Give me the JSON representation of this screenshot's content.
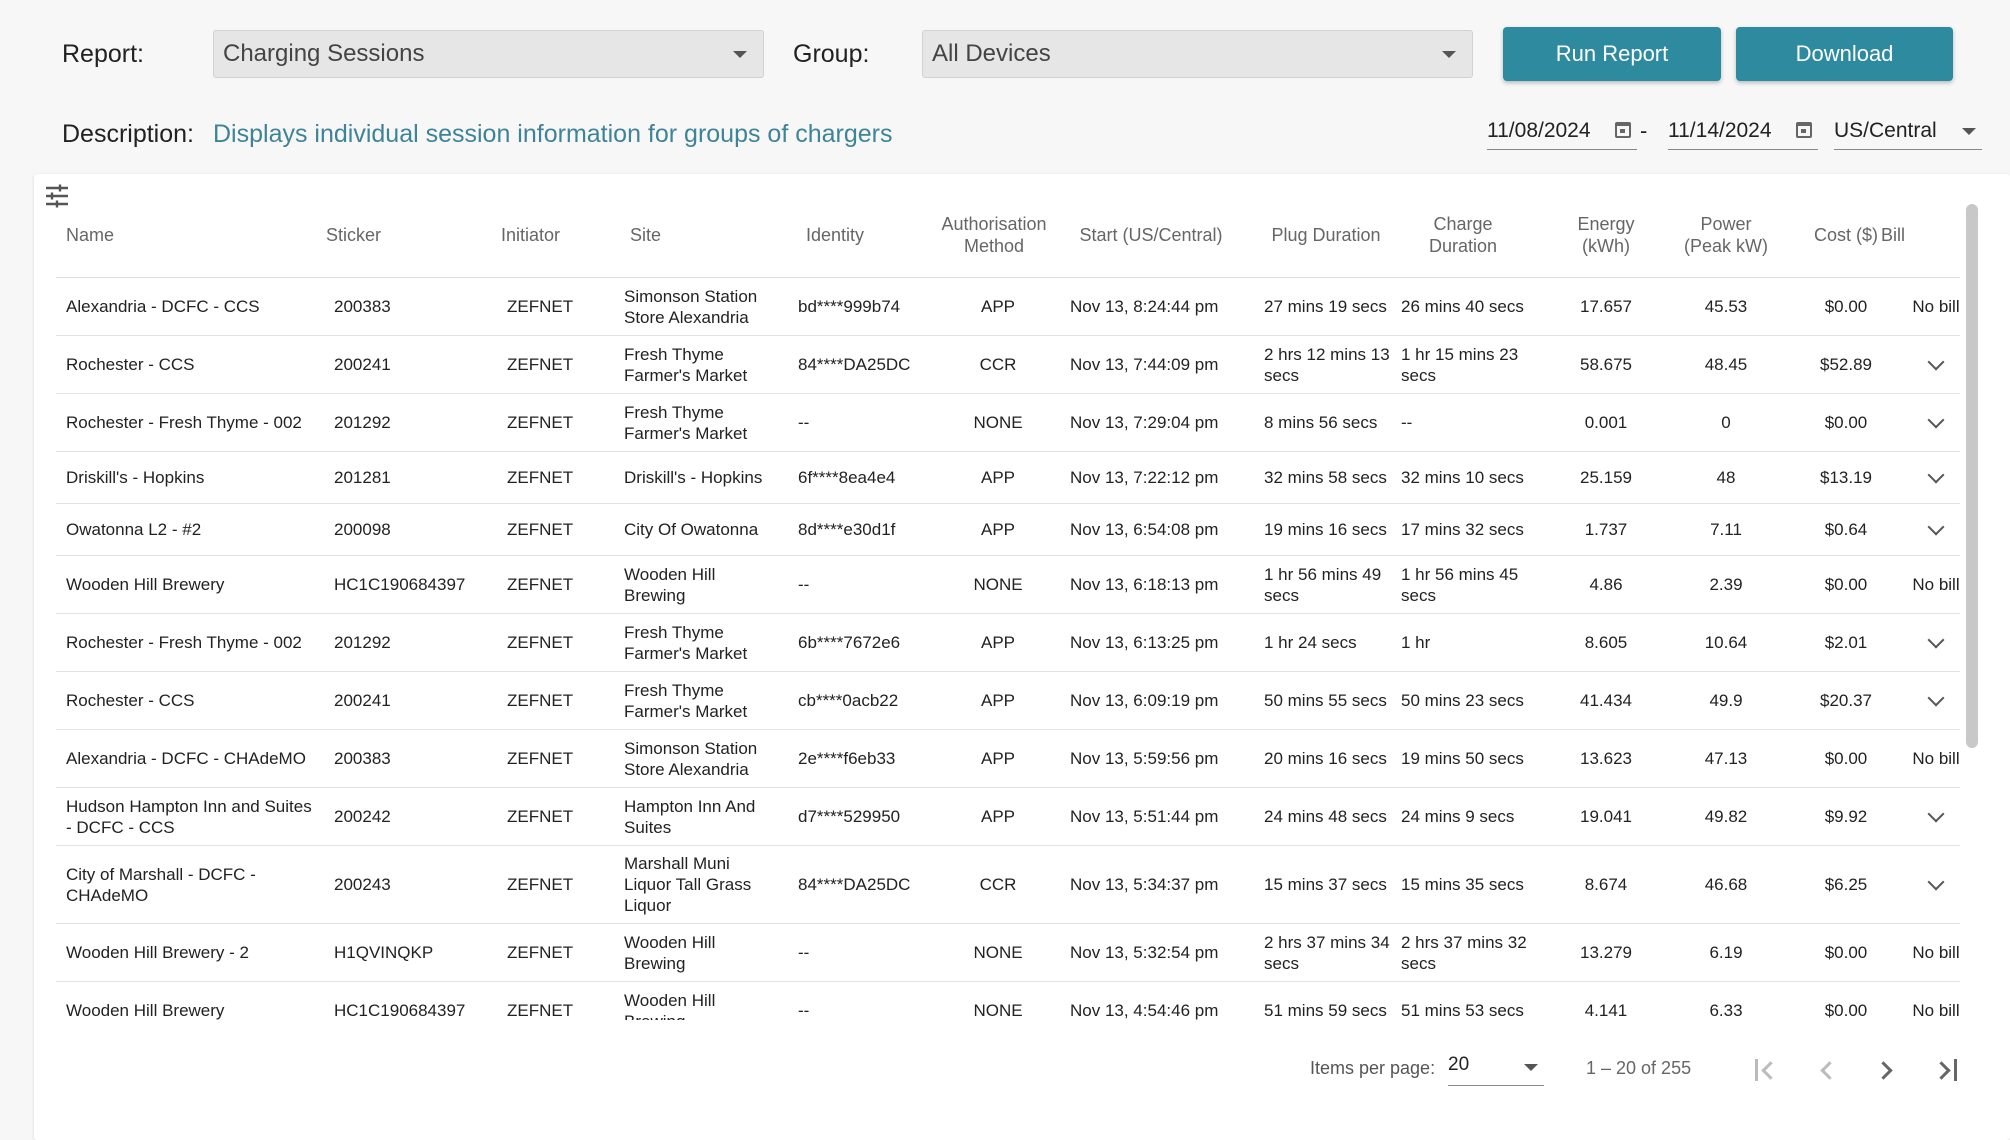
{
  "toolbar": {
    "report_label": "Report:",
    "report_value": "Charging Sessions",
    "group_label": "Group:",
    "group_value": "All Devices",
    "run_label": "Run Report",
    "download_label": "Download",
    "description_label": "Description:",
    "description_text": "Displays individual session information for groups of chargers",
    "date_from": "11/08/2024",
    "date_separator": "-",
    "date_to": "11/14/2024",
    "timezone": "US/Central"
  },
  "table": {
    "columns": [
      {
        "label": "Name"
      },
      {
        "label": "Sticker"
      },
      {
        "label": "Initiator"
      },
      {
        "label": "Site"
      },
      {
        "label": "Identity"
      },
      {
        "label": "Authorisation Method"
      },
      {
        "label": "Start (US/Central)"
      },
      {
        "label": "Plug Duration"
      },
      {
        "label": "Charge Duration"
      },
      {
        "label": "Energy (kWh)"
      },
      {
        "label": "Power (Peak kW)"
      },
      {
        "label": "Cost ($)"
      },
      {
        "label": "Bill"
      }
    ],
    "rows": [
      {
        "name": "Alexandria - DCFC - CCS",
        "sticker": "200383",
        "initiator": "ZEFNET",
        "site": "Simonson Station Store Alexandria",
        "identity": "bd****999b74",
        "auth": "APP",
        "start": "Nov 13, 8:24:44 pm",
        "plug": "27 mins 19 secs",
        "charge": "26 mins 40 secs",
        "energy": "17.657",
        "power": "45.53",
        "cost": "$0.00",
        "bill": "No bill"
      },
      {
        "name": "Rochester - CCS",
        "sticker": "200241",
        "initiator": "ZEFNET",
        "site": "Fresh Thyme Farmer's Market",
        "identity": "84****DA25DC",
        "auth": "CCR",
        "start": "Nov 13, 7:44:09 pm",
        "plug": "2 hrs 12 mins 13 secs",
        "charge": "1 hr 15 mins 23 secs",
        "energy": "58.675",
        "power": "48.45",
        "cost": "$52.89",
        "bill": ""
      },
      {
        "name": "Rochester - Fresh Thyme - 002",
        "sticker": "201292",
        "initiator": "ZEFNET",
        "site": "Fresh Thyme Farmer's Market",
        "identity": "--",
        "auth": "NONE",
        "start": "Nov 13, 7:29:04 pm",
        "plug": "8 mins 56 secs",
        "charge": "--",
        "energy": "0.001",
        "power": "0",
        "cost": "$0.00",
        "bill": ""
      },
      {
        "name": "Driskill's - Hopkins",
        "sticker": "201281",
        "initiator": "ZEFNET",
        "site": "Driskill's - Hopkins",
        "identity": "6f****8ea4e4",
        "auth": "APP",
        "start": "Nov 13, 7:22:12 pm",
        "plug": "32 mins 58 secs",
        "charge": "32 mins 10 secs",
        "energy": "25.159",
        "power": "48",
        "cost": "$13.19",
        "bill": ""
      },
      {
        "name": "Owatonna L2 - #2",
        "sticker": "200098",
        "initiator": "ZEFNET",
        "site": "City Of Owatonna",
        "identity": "8d****e30d1f",
        "auth": "APP",
        "start": "Nov 13, 6:54:08 pm",
        "plug": "19 mins 16 secs",
        "charge": "17 mins 32 secs",
        "energy": "1.737",
        "power": "7.11",
        "cost": "$0.64",
        "bill": ""
      },
      {
        "name": "Wooden Hill Brewery",
        "sticker": "HC1C190684397",
        "initiator": "ZEFNET",
        "site": "Wooden Hill Brewing",
        "identity": "--",
        "auth": "NONE",
        "start": "Nov 13, 6:18:13 pm",
        "plug": "1 hr 56 mins 49 secs",
        "charge": "1 hr 56 mins 45 secs",
        "energy": "4.86",
        "power": "2.39",
        "cost": "$0.00",
        "bill": "No bill"
      },
      {
        "name": "Rochester - Fresh Thyme - 002",
        "sticker": "201292",
        "initiator": "ZEFNET",
        "site": "Fresh Thyme Farmer's Market",
        "identity": "6b****7672e6",
        "auth": "APP",
        "start": "Nov 13, 6:13:25 pm",
        "plug": "1 hr 24 secs",
        "charge": "1 hr",
        "energy": "8.605",
        "power": "10.64",
        "cost": "$2.01",
        "bill": ""
      },
      {
        "name": "Rochester - CCS",
        "sticker": "200241",
        "initiator": "ZEFNET",
        "site": "Fresh Thyme Farmer's Market",
        "identity": "cb****0acb22",
        "auth": "APP",
        "start": "Nov 13, 6:09:19 pm",
        "plug": "50 mins 55 secs",
        "charge": "50 mins 23 secs",
        "energy": "41.434",
        "power": "49.9",
        "cost": "$20.37",
        "bill": ""
      },
      {
        "name": "Alexandria - DCFC - CHAdeMO",
        "sticker": "200383",
        "initiator": "ZEFNET",
        "site": "Simonson Station Store Alexandria",
        "identity": "2e****f6eb33",
        "auth": "APP",
        "start": "Nov 13, 5:59:56 pm",
        "plug": "20 mins 16 secs",
        "charge": "19 mins 50 secs",
        "energy": "13.623",
        "power": "47.13",
        "cost": "$0.00",
        "bill": "No bill"
      },
      {
        "name": "Hudson Hampton Inn and Suites - DCFC - CCS",
        "sticker": "200242",
        "initiator": "ZEFNET",
        "site": "Hampton Inn And Suites",
        "identity": "d7****529950",
        "auth": "APP",
        "start": "Nov 13, 5:51:44 pm",
        "plug": "24 mins 48 secs",
        "charge": "24 mins 9 secs",
        "energy": "19.041",
        "power": "49.82",
        "cost": "$9.92",
        "bill": ""
      },
      {
        "name": "City of Marshall - DCFC - CHAdeMO",
        "sticker": "200243",
        "initiator": "ZEFNET",
        "site": "Marshall Muni Liquor Tall Grass Liquor",
        "identity": "84****DA25DC",
        "auth": "CCR",
        "start": "Nov 13, 5:34:37 pm",
        "plug": "15 mins 37 secs",
        "charge": "15 mins 35 secs",
        "energy": "8.674",
        "power": "46.68",
        "cost": "$6.25",
        "bill": ""
      },
      {
        "name": "Wooden Hill Brewery - 2",
        "sticker": "H1QVINQKP",
        "initiator": "ZEFNET",
        "site": "Wooden Hill Brewing",
        "identity": "--",
        "auth": "NONE",
        "start": "Nov 13, 5:32:54 pm",
        "plug": "2 hrs 37 mins 34 secs",
        "charge": "2 hrs 37 mins 32 secs",
        "energy": "13.279",
        "power": "6.19",
        "cost": "$0.00",
        "bill": "No bill"
      },
      {
        "name": "Wooden Hill Brewery",
        "sticker": "HC1C190684397",
        "initiator": "ZEFNET",
        "site": "Wooden Hill Brewing",
        "identity": "--",
        "auth": "NONE",
        "start": "Nov 13, 4:54:46 pm",
        "plug": "51 mins 59 secs",
        "charge": "51 mins 53 secs",
        "energy": "4.141",
        "power": "6.33",
        "cost": "$0.00",
        "bill": "No bill"
      }
    ]
  },
  "paginator": {
    "items_per_page_label": "Items per page:",
    "items_per_page_value": "20",
    "range_label": "1 – 20 of 255"
  },
  "colors": {
    "accent": "#2e8a9e",
    "description": "#3e8497"
  },
  "icons": [
    "filter-settings-icon",
    "calendar-icon",
    "chevron-down-icon",
    "first-page-icon",
    "prev-page-icon",
    "next-page-icon",
    "last-page-icon"
  ]
}
